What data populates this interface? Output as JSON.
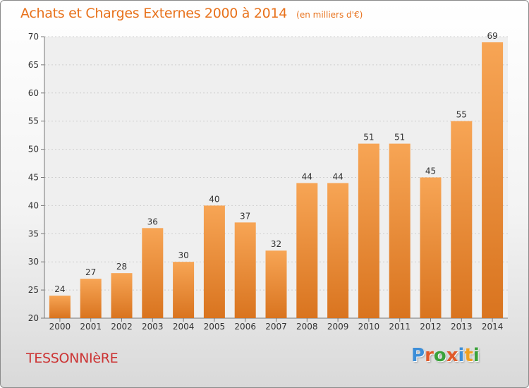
{
  "chart_data": {
    "type": "bar",
    "title": "Achats et Charges Externes 2000 à 2014",
    "subtitle": "(en milliers d'€)",
    "categories": [
      "2000",
      "2001",
      "2002",
      "2003",
      "2004",
      "2005",
      "2006",
      "2007",
      "2008",
      "2009",
      "2010",
      "2011",
      "2012",
      "2013",
      "2014"
    ],
    "values": [
      24,
      27,
      28,
      36,
      30,
      40,
      37,
      32,
      44,
      44,
      51,
      51,
      45,
      55,
      69
    ],
    "ylim": [
      20,
      70
    ],
    "yticks": [
      20,
      25,
      30,
      35,
      40,
      45,
      50,
      55,
      60,
      65,
      70
    ],
    "grid": true,
    "bar_color": "#f0913a"
  },
  "footer": {
    "place": "TESSONNIèRE",
    "logo_text": "Proxiti",
    "logo_colors": [
      "#3c8ed8",
      "#e05a2a",
      "#3aa23a",
      "#e05a2a",
      "#3c8ed8",
      "#f0a020",
      "#3aa23a"
    ]
  }
}
